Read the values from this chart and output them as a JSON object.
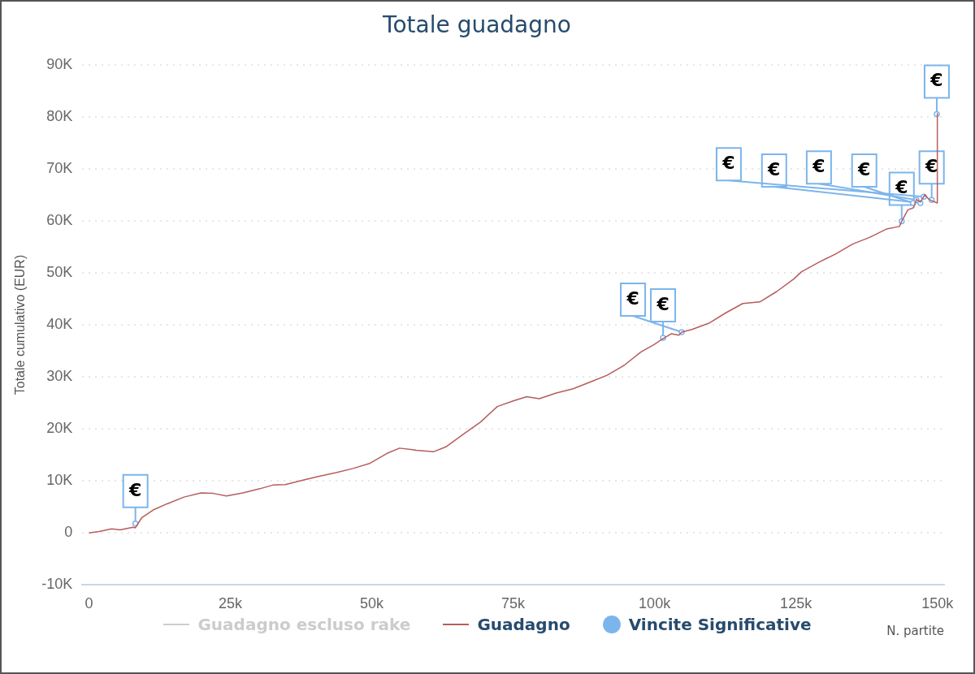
{
  "chart_data": {
    "type": "line",
    "title": "Totale guadagno",
    "xlabel": "N. partite",
    "ylabel": "Totale cumulativo (EUR)",
    "xlim": [
      -1200,
      151200
    ],
    "xticks": [
      0,
      {
        "value": 25000,
        "label": "25k"
      },
      {
        "value": 50000,
        "label": "50k"
      },
      {
        "value": 75000,
        "label": "75k"
      },
      {
        "value": 100000,
        "label": "100k"
      },
      {
        "value": 125000,
        "label": "125k"
      },
      {
        "value": 150000,
        "label": "150k"
      }
    ],
    "ylim": [
      -10000,
      90000
    ],
    "yticks": [
      {
        "value": -10000,
        "label": "-10K"
      },
      0,
      {
        "value": 10000,
        "label": "10K"
      },
      {
        "value": 20000,
        "label": "20K"
      },
      {
        "value": 30000,
        "label": "30K"
      },
      {
        "value": 40000,
        "label": "40K"
      },
      {
        "value": 50000,
        "label": "50K"
      },
      {
        "value": 60000,
        "label": "60K"
      },
      {
        "value": 70000,
        "label": "70K"
      },
      {
        "value": 80000,
        "label": "80K"
      },
      {
        "value": 90000,
        "label": "90K"
      }
    ],
    "grid": "y",
    "legend": "bottom",
    "series": [
      {
        "name": "Guadagno escluso rake",
        "color": "#cccccc"
      },
      {
        "name": "Guadagno",
        "color": "#b85c5c",
        "x": [
          0,
          1800,
          4000,
          5500,
          7800,
          8200,
          9300,
          11500,
          13800,
          16800,
          19800,
          22000,
          24300,
          27200,
          30200,
          32500,
          34700,
          37700,
          40700,
          43700,
          46700,
          49700,
          52700,
          54900,
          57900,
          60900,
          63200,
          66200,
          69200,
          72200,
          75100,
          77400,
          79600,
          82600,
          85600,
          88600,
          91600,
          94600,
          97600,
          99900,
          101300,
          103000,
          104300,
          104800,
          106600,
          109600,
          112600,
          115600,
          118600,
          121600,
          124600,
          126000,
          129000,
          132000,
          135000,
          138000,
          141000,
          143300,
          143700,
          144800,
          145800,
          146300,
          147000,
          147800,
          148500,
          150000,
          150000
        ],
        "values": [
          0,
          300,
          800,
          600,
          1100,
          1000,
          2900,
          4500,
          5600,
          6900,
          7700,
          7600,
          7100,
          7700,
          8500,
          9200,
          9300,
          10100,
          10900,
          11600,
          12400,
          13400,
          15300,
          16300,
          15900,
          15600,
          16600,
          19000,
          21300,
          24300,
          25400,
          26200,
          25800,
          26900,
          27700,
          29000,
          30300,
          32200,
          34800,
          36200,
          37200,
          38300,
          38000,
          38600,
          39100,
          40300,
          42300,
          44100,
          44400,
          46400,
          48800,
          50200,
          52000,
          53600,
          55500,
          56800,
          58400,
          58900,
          59900,
          62100,
          62500,
          64100,
          63600,
          65000,
          64100,
          63400,
          80700
        ]
      },
      {
        "name": "Vincite Significative",
        "color": "#7cb5ec",
        "type": "scatter",
        "x": [
          8200,
          101500,
          104800,
          143700,
          145700,
          146300,
          147000,
          147600,
          149000,
          149900
        ],
        "values": [
          1800,
          37500,
          38600,
          59900,
          63400,
          64000,
          63400,
          64600,
          64000,
          80500
        ]
      }
    ],
    "annotations": [
      {
        "text": "€",
        "x": 8200,
        "y": 1800
      },
      {
        "text": "€",
        "x": 101500,
        "y": 37500
      },
      {
        "text": "€",
        "x": 104800,
        "y": 38600
      },
      {
        "text": "€",
        "x": 143700,
        "y": 59900
      },
      {
        "text": "€",
        "x": 145700,
        "y": 63400
      },
      {
        "text": "€",
        "x": 146300,
        "y": 64000
      },
      {
        "text": "€",
        "x": 147000,
        "y": 63400
      },
      {
        "text": "€",
        "x": 147600,
        "y": 64600
      },
      {
        "text": "€",
        "x": 149000,
        "y": 64000
      },
      {
        "text": "€",
        "x": 149900,
        "y": 80500
      }
    ]
  }
}
